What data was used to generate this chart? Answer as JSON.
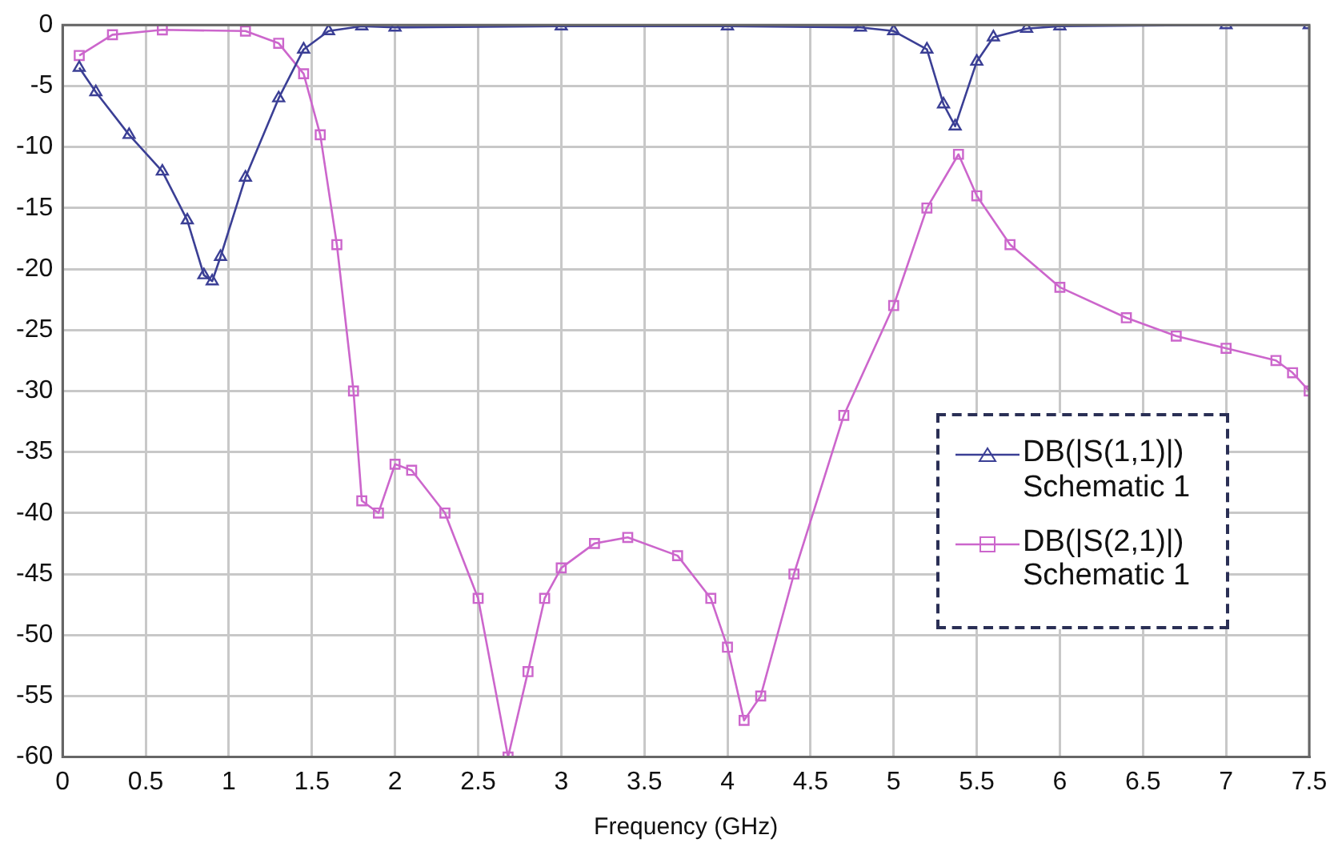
{
  "chart_data": {
    "type": "line",
    "xlabel": "Frequency (GHz)",
    "xlim": [
      0,
      7.5
    ],
    "xticks": [
      0,
      0.5,
      1,
      1.5,
      2,
      2.5,
      3,
      3.5,
      4,
      4.5,
      5,
      5.5,
      6,
      6.5,
      7,
      7.5
    ],
    "ylim": [
      -60,
      0
    ],
    "yticks": [
      0,
      -5,
      -10,
      -15,
      -20,
      -25,
      -30,
      -35,
      -40,
      -45,
      -50,
      -55,
      -60
    ],
    "grid": true,
    "legend": "right",
    "line_style": "solid",
    "series": [
      {
        "name": "DB(|S(1,1)|)\nSchematic 1",
        "color": "#3b3f95",
        "marker": "triangle",
        "x": [
          0.1,
          0.2,
          0.4,
          0.6,
          0.75,
          0.85,
          0.9,
          0.95,
          1.1,
          1.3,
          1.45,
          1.6,
          1.8,
          2.0,
          3.0,
          4.0,
          4.8,
          5.0,
          5.2,
          5.3,
          5.37,
          5.5,
          5.6,
          5.8,
          6.0,
          7.0,
          7.5
        ],
        "values": [
          -3.5,
          -5.5,
          -9,
          -12,
          -16,
          -20.5,
          -21,
          -19,
          -12.5,
          -6,
          -2,
          -0.5,
          -0.1,
          -0.2,
          -0.1,
          -0.1,
          -0.2,
          -0.5,
          -2,
          -6.5,
          -8.3,
          -3,
          -1,
          -0.3,
          -0.1,
          0,
          0
        ]
      },
      {
        "name": "DB(|S(2,1)|)\nSchematic 1",
        "color": "#cc66cc",
        "marker": "square",
        "x": [
          0.1,
          0.3,
          0.6,
          1.1,
          1.3,
          1.45,
          1.55,
          1.65,
          1.75,
          1.8,
          1.9,
          2.0,
          2.1,
          2.3,
          2.5,
          2.68,
          2.8,
          2.9,
          3.0,
          3.2,
          3.4,
          3.7,
          3.9,
          4.0,
          4.1,
          4.2,
          4.4,
          4.7,
          5.0,
          5.2,
          5.39,
          5.5,
          5.7,
          6.0,
          6.4,
          6.7,
          7.0,
          7.3,
          7.4,
          7.5
        ],
        "values": [
          -2.5,
          -0.8,
          -0.4,
          -0.5,
          -1.5,
          -4,
          -9,
          -18,
          -30,
          -39,
          -40,
          -36,
          -36.5,
          -40,
          -47,
          -60,
          -53,
          -47,
          -44.5,
          -42.5,
          -42,
          -43.5,
          -47,
          -51,
          -57,
          -55,
          -45,
          -32,
          -23,
          -15,
          -10.6,
          -14,
          -18,
          -21.5,
          -24,
          -25.5,
          -26.5,
          -27.5,
          -28.5,
          -30
        ]
      }
    ]
  }
}
